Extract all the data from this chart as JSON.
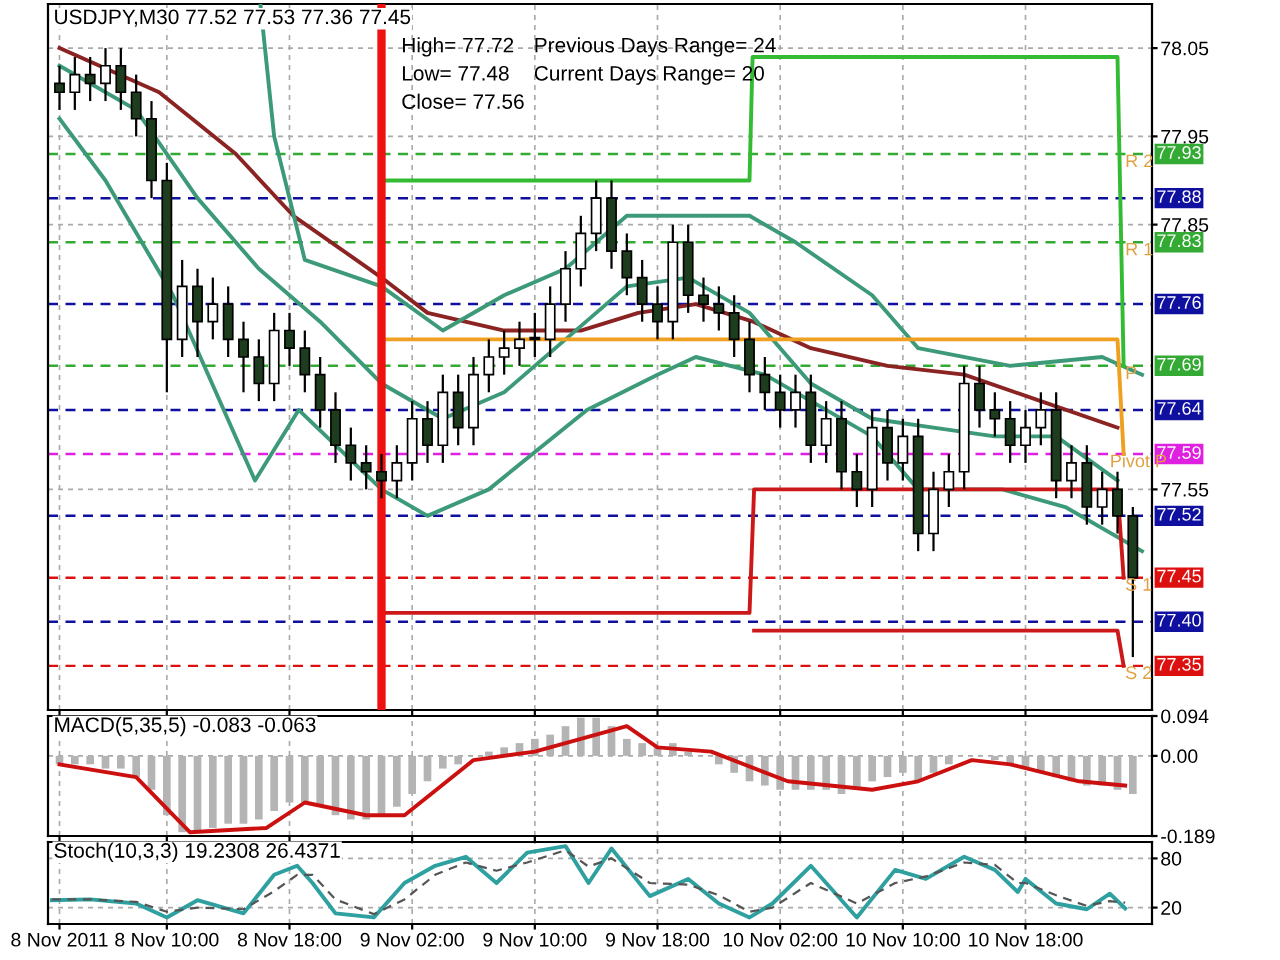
{
  "chart_data": [
    {
      "type": "candlestick",
      "title": "USDJPY,M30 77.52 77.53 77.36 77.45",
      "x": [
        "2011-11-08T03:00",
        "2011-11-08T04:00",
        "2011-11-08T05:00",
        "2011-11-08T06:00",
        "2011-11-08T07:00",
        "2011-11-08T08:00",
        "2011-11-08T09:00",
        "2011-11-08T10:00",
        "2011-11-08T11:00",
        "2011-11-08T12:00",
        "2011-11-08T13:00",
        "2011-11-08T14:00",
        "2011-11-08T15:00",
        "2011-11-08T16:00",
        "2011-11-08T17:00",
        "2011-11-08T18:00",
        "2011-11-08T19:00",
        "2011-11-08T20:00",
        "2011-11-08T21:00",
        "2011-11-08T22:00",
        "2011-11-08T23:00",
        "2011-11-09T00:00",
        "2011-11-09T01:00",
        "2011-11-09T02:00",
        "2011-11-09T03:00",
        "2011-11-09T04:00",
        "2011-11-09T05:00",
        "2011-11-09T06:00",
        "2011-11-09T07:00",
        "2011-11-09T08:00",
        "2011-11-09T09:00",
        "2011-11-09T10:00",
        "2011-11-09T11:00",
        "2011-11-09T12:00",
        "2011-11-09T13:00",
        "2011-11-09T14:00",
        "2011-11-09T15:00",
        "2011-11-09T16:00",
        "2011-11-09T17:00",
        "2011-11-09T18:00",
        "2011-11-09T19:00",
        "2011-11-09T20:00",
        "2011-11-09T21:00",
        "2011-11-09T22:00",
        "2011-11-09T23:00",
        "2011-11-10T00:00",
        "2011-11-10T01:00",
        "2011-11-10T02:00",
        "2011-11-10T03:00",
        "2011-11-10T04:00",
        "2011-11-10T05:00",
        "2011-11-10T06:00",
        "2011-11-10T07:00",
        "2011-11-10T08:00",
        "2011-11-10T09:00",
        "2011-11-10T10:00",
        "2011-11-10T11:00",
        "2011-11-10T12:00",
        "2011-11-10T13:00",
        "2011-11-10T14:00",
        "2011-11-10T15:00",
        "2011-11-10T16:00",
        "2011-11-10T17:00",
        "2011-11-10T18:00",
        "2011-11-10T19:00",
        "2011-11-10T20:00",
        "2011-11-10T21:00",
        "2011-11-10T22:00",
        "2011-11-10T23:00",
        "2011-11-11T00:00",
        "2011-11-11T01:00"
      ],
      "ohlc": [
        [
          78.01,
          78.03,
          77.98,
          78.0
        ],
        [
          78.0,
          78.04,
          77.98,
          78.02
        ],
        [
          78.02,
          78.04,
          77.99,
          78.01
        ],
        [
          78.01,
          78.05,
          77.99,
          78.03
        ],
        [
          78.03,
          78.05,
          77.98,
          78.0
        ],
        [
          78.0,
          78.02,
          77.95,
          77.97
        ],
        [
          77.97,
          77.99,
          77.88,
          77.9
        ],
        [
          77.9,
          77.92,
          77.66,
          77.72
        ],
        [
          77.72,
          77.81,
          77.7,
          77.78
        ],
        [
          77.78,
          77.8,
          77.7,
          77.74
        ],
        [
          77.74,
          77.79,
          77.72,
          77.76
        ],
        [
          77.76,
          77.78,
          77.7,
          77.72
        ],
        [
          77.72,
          77.74,
          77.66,
          77.7
        ],
        [
          77.7,
          77.72,
          77.65,
          77.67
        ],
        [
          77.67,
          77.75,
          77.65,
          77.73
        ],
        [
          77.73,
          77.75,
          77.69,
          77.71
        ],
        [
          77.71,
          77.73,
          77.66,
          77.68
        ],
        [
          77.68,
          77.7,
          77.62,
          77.64
        ],
        [
          77.64,
          77.66,
          77.58,
          77.6
        ],
        [
          77.6,
          77.62,
          77.56,
          77.58
        ],
        [
          77.58,
          77.6,
          77.55,
          77.57
        ],
        [
          77.57,
          77.59,
          77.54,
          77.56
        ],
        [
          77.56,
          77.6,
          77.54,
          77.58
        ],
        [
          77.58,
          77.65,
          77.56,
          77.63
        ],
        [
          77.63,
          77.65,
          77.58,
          77.6
        ],
        [
          77.6,
          77.68,
          77.58,
          77.66
        ],
        [
          77.66,
          77.68,
          77.6,
          77.62
        ],
        [
          77.62,
          77.7,
          77.6,
          77.68
        ],
        [
          77.68,
          77.72,
          77.66,
          77.7
        ],
        [
          77.7,
          77.73,
          77.68,
          77.71
        ],
        [
          77.71,
          77.74,
          77.69,
          77.72
        ],
        [
          77.72,
          77.75,
          77.7,
          77.72
        ],
        [
          77.72,
          77.78,
          77.7,
          77.76
        ],
        [
          77.76,
          77.82,
          77.74,
          77.8
        ],
        [
          77.8,
          77.86,
          77.78,
          77.84
        ],
        [
          77.84,
          77.9,
          77.82,
          77.88
        ],
        [
          77.88,
          77.9,
          77.8,
          77.82
        ],
        [
          77.82,
          77.84,
          77.77,
          77.79
        ],
        [
          77.79,
          77.81,
          77.74,
          77.76
        ],
        [
          77.76,
          77.78,
          77.72,
          77.74
        ],
        [
          77.74,
          77.85,
          77.72,
          77.83
        ],
        [
          77.83,
          77.85,
          77.75,
          77.77
        ],
        [
          77.77,
          77.79,
          77.74,
          77.76
        ],
        [
          77.76,
          77.78,
          77.73,
          77.75
        ],
        [
          77.75,
          77.77,
          77.7,
          77.72
        ],
        [
          77.72,
          77.74,
          77.66,
          77.68
        ],
        [
          77.68,
          77.7,
          77.64,
          77.66
        ],
        [
          77.66,
          77.68,
          77.62,
          77.64
        ],
        [
          77.64,
          77.68,
          77.62,
          77.66
        ],
        [
          77.66,
          77.68,
          77.58,
          77.6
        ],
        [
          77.6,
          77.65,
          77.58,
          77.63
        ],
        [
          77.63,
          77.65,
          77.55,
          77.57
        ],
        [
          77.57,
          77.59,
          77.53,
          77.55
        ],
        [
          77.55,
          77.64,
          77.53,
          77.62
        ],
        [
          77.62,
          77.64,
          77.56,
          77.58
        ],
        [
          77.58,
          77.63,
          77.56,
          77.61
        ],
        [
          77.61,
          77.63,
          77.48,
          77.5
        ],
        [
          77.5,
          77.57,
          77.48,
          77.55
        ],
        [
          77.55,
          77.59,
          77.53,
          77.57
        ],
        [
          77.57,
          77.69,
          77.55,
          77.67
        ],
        [
          77.67,
          77.69,
          77.62,
          77.64
        ],
        [
          77.64,
          77.66,
          77.61,
          77.63
        ],
        [
          77.63,
          77.65,
          77.58,
          77.6
        ],
        [
          77.6,
          77.64,
          77.58,
          77.62
        ],
        [
          77.62,
          77.66,
          77.6,
          77.64
        ],
        [
          77.64,
          77.66,
          77.54,
          77.56
        ],
        [
          77.56,
          77.6,
          77.54,
          77.58
        ],
        [
          77.58,
          77.6,
          77.51,
          77.53
        ],
        [
          77.53,
          77.57,
          77.51,
          77.55
        ],
        [
          77.55,
          77.57,
          77.5,
          77.52
        ],
        [
          77.52,
          77.53,
          77.36,
          77.45
        ]
      ],
      "series": [
        {
          "type": "line",
          "color": "#8b2323",
          "x": [
            "2011-11-08T03:00",
            "2011-11-08T09:30",
            "2011-11-08T14:30",
            "2011-11-08T18:15",
            "2011-11-09T00:00",
            "2011-11-09T03:00",
            "2011-11-09T08:00",
            "2011-11-09T13:00",
            "2011-11-09T16:45",
            "2011-11-09T20:30",
            "2011-11-10T00:15",
            "2011-11-10T04:00",
            "2011-11-10T09:00",
            "2011-11-10T14:00",
            "2011-11-10T19:00",
            "2011-11-11T00:00"
          ],
          "values": [
            78.05,
            78.0,
            77.93,
            77.86,
            77.79,
            77.75,
            77.73,
            77.73,
            77.75,
            77.76,
            77.74,
            77.71,
            77.69,
            77.68,
            77.65,
            77.62
          ]
        },
        {
          "type": "line",
          "color": "#3c9a78",
          "x": [
            "2011-11-08T03:00",
            "2011-11-08T08:00",
            "2011-11-08T12:00",
            "2011-11-08T16:00",
            "2011-11-08T20:00",
            "2011-11-09T00:00",
            "2011-11-09T04:00",
            "2011-11-09T08:00",
            "2011-11-09T12:00",
            "2011-11-09T16:00",
            "2011-11-09T20:00",
            "2011-11-10T00:00",
            "2011-11-10T04:00",
            "2011-11-10T08:00",
            "2011-11-10T12:00",
            "2011-11-10T16:00",
            "2011-11-10T20:00",
            "2011-11-11T00:00"
          ],
          "values": [
            78.03,
            77.98,
            77.88,
            77.8,
            77.74,
            77.67,
            77.63,
            77.66,
            77.72,
            77.78,
            77.79,
            77.75,
            77.67,
            77.63,
            77.62,
            77.61,
            77.61,
            77.56
          ]
        },
        {
          "type": "line",
          "color": "#3c9a78",
          "x": [
            "2011-11-08T16:06",
            "2011-11-08T17:00",
            "2011-11-08T19:00",
            "2011-11-09T00:00",
            "2011-11-09T04:00",
            "2011-11-09T08:00",
            "2011-11-09T12:00",
            "2011-11-09T16:00",
            "2011-11-09T20:00",
            "2011-11-10T00:00",
            "2011-11-10T03:00",
            "2011-11-10T08:00",
            "2011-11-10T11:00",
            "2011-11-10T17:00",
            "2011-11-10T23:00",
            "2011-11-11T01:36"
          ],
          "values": [
            78.1,
            77.95,
            77.81,
            77.78,
            77.73,
            77.77,
            77.8,
            77.86,
            77.86,
            77.86,
            77.83,
            77.77,
            77.71,
            77.69,
            77.7,
            77.68
          ]
        },
        {
          "type": "line",
          "color": "#3c9a78",
          "x": [
            "2011-11-08T03:00",
            "2011-11-08T06:00",
            "2011-11-08T10:24",
            "2011-11-08T15:45",
            "2011-11-08T18:36",
            "2011-11-09T00:00",
            "2011-11-09T03:00",
            "2011-11-09T07:00",
            "2011-11-09T13:24",
            "2011-11-09T18:00",
            "2011-11-09T20:30",
            "2011-11-10T01:00",
            "2011-11-10T08:00",
            "2011-11-10T11:00",
            "2011-11-10T16:30",
            "2011-11-10T20:36",
            "2011-11-11T01:36"
          ],
          "values": [
            77.97,
            77.9,
            77.77,
            77.56,
            77.64,
            77.55,
            77.52,
            77.55,
            77.64,
            77.68,
            77.7,
            77.68,
            77.61,
            77.55,
            77.55,
            77.53,
            77.48
          ]
        },
        {
          "type": "line",
          "color": "#33bb33",
          "x": [
            "2011-11-09T00:00",
            "2011-11-10T00:00",
            "2011-11-10T00:12",
            "2011-11-11T00:00",
            "2011-11-11T00:24"
          ],
          "values": [
            77.9,
            77.9,
            78.04,
            78.04,
            77.69
          ]
        },
        {
          "type": "line",
          "color": "#f0a020",
          "x": [
            "2011-11-09T00:00",
            "2011-11-11T00:00",
            "2011-11-11T00:24"
          ],
          "values": [
            77.72,
            77.72,
            77.59
          ]
        },
        {
          "type": "line",
          "color": "#cc1818",
          "x": [
            "2011-11-09T00:00",
            "2011-11-10T00:00",
            "2011-11-10T00:18",
            "2011-11-11T00:00",
            "2011-11-11T00:24"
          ],
          "values": [
            77.41,
            77.41,
            77.55,
            77.55,
            77.45
          ]
        },
        {
          "type": "line",
          "color": "#cc1818",
          "x": [
            "2011-11-10T00:18",
            "2011-11-11T00:00",
            "2011-11-11T00:24"
          ],
          "values": [
            77.39,
            77.39,
            77.35
          ]
        }
      ],
      "xlim": [
        "2011-11-08T02:15",
        "2011-11-11T02:15"
      ],
      "ylim": [
        77.3,
        78.1
      ],
      "xticks": [
        "2011-11-08T03:00",
        "2011-11-08T10:00",
        "2011-11-08T18:00",
        "2011-11-09T02:00",
        "2011-11-09T10:00",
        "2011-11-09T18:00",
        "2011-11-10T02:00",
        "2011-11-10T10:00",
        "2011-11-10T18:00"
      ],
      "yticks": [
        78.05,
        77.95,
        77.85,
        77.55
      ],
      "tick_labels": "y",
      "grid": true,
      "ref_lines": [
        {
          "axis": "y",
          "value": 77.93,
          "label": "77.93",
          "color": "#33aa33",
          "line_style": "dashed"
        },
        {
          "axis": "y",
          "value": 77.88,
          "label": "77.88",
          "color": "#1010a0",
          "line_style": "dashed"
        },
        {
          "axis": "y",
          "value": 77.83,
          "label": "77.83",
          "color": "#33aa33",
          "line_style": "dashed"
        },
        {
          "axis": "y",
          "value": 77.76,
          "label": "77.76",
          "color": "#1010a0",
          "line_style": "dashed"
        },
        {
          "axis": "y",
          "value": 77.69,
          "label": "77.69",
          "color": "#33aa33",
          "line_style": "dashed"
        },
        {
          "axis": "y",
          "value": 77.64,
          "label": "77.64",
          "color": "#1010a0",
          "line_style": "dashed"
        },
        {
          "axis": "y",
          "value": 77.59,
          "label": "77.59",
          "color": "#e020e0",
          "line_style": "dashed"
        },
        {
          "axis": "y",
          "value": 77.52,
          "label": "77.52",
          "color": "#1010a0",
          "line_style": "dashed"
        },
        {
          "axis": "y",
          "value": 77.45,
          "label": "77.45",
          "color": "#dd1010",
          "line_style": "dashed"
        },
        {
          "axis": "y",
          "value": 77.4,
          "label": "77.40",
          "color": "#1010a0",
          "line_style": "dashed"
        },
        {
          "axis": "y",
          "value": 77.35,
          "label": "77.35",
          "color": "#dd1010",
          "line_style": "dashed"
        },
        {
          "axis": "x",
          "value": "2011-11-09T00:00",
          "color": "#ee1111",
          "line_style": "solid"
        }
      ],
      "annotations": [
        "High= 77.72",
        "Previous Days Range= 24",
        "Low= 77.48",
        "Current Days Range= 20",
        "Close= 77.56",
        {
          "text": "R 2",
          "x": "2011-11-11T00:30",
          "y": 77.93
        },
        {
          "text": "R 1",
          "x": "2011-11-11T00:30",
          "y": 77.83
        },
        {
          "text": "P",
          "x": "2011-11-11T00:30",
          "y": 77.69
        },
        {
          "text": "Pivot P",
          "x": "2011-11-10T23:30",
          "y": 77.59
        },
        {
          "text": "S 1",
          "x": "2011-11-11T00:30",
          "y": 77.45
        },
        {
          "text": "S 2",
          "x": "2011-11-11T00:30",
          "y": 77.35
        }
      ]
    },
    {
      "type": "bar",
      "title": "MACD(5,35,5) -0.083 -0.063",
      "x": [
        "2011-11-08T03:00",
        "2011-11-08T04:00",
        "2011-11-08T05:00",
        "2011-11-08T06:00",
        "2011-11-08T07:00",
        "2011-11-08T08:00",
        "2011-11-08T09:00",
        "2011-11-08T10:00",
        "2011-11-08T11:00",
        "2011-11-08T12:00",
        "2011-11-08T13:00",
        "2011-11-08T14:00",
        "2011-11-08T15:00",
        "2011-11-08T16:00",
        "2011-11-08T17:00",
        "2011-11-08T18:00",
        "2011-11-08T19:00",
        "2011-11-08T20:00",
        "2011-11-08T21:00",
        "2011-11-08T22:00",
        "2011-11-08T23:00",
        "2011-11-09T00:00",
        "2011-11-09T01:00",
        "2011-11-09T02:00",
        "2011-11-09T03:00",
        "2011-11-09T04:00",
        "2011-11-09T05:00",
        "2011-11-09T06:00",
        "2011-11-09T07:00",
        "2011-11-09T08:00",
        "2011-11-09T09:00",
        "2011-11-09T10:00",
        "2011-11-09T11:00",
        "2011-11-09T12:00",
        "2011-11-09T13:00",
        "2011-11-09T14:00",
        "2011-11-09T15:00",
        "2011-11-09T16:00",
        "2011-11-09T17:00",
        "2011-11-09T18:00",
        "2011-11-09T19:00",
        "2011-11-09T20:00",
        "2011-11-09T21:00",
        "2011-11-09T22:00",
        "2011-11-09T23:00",
        "2011-11-10T00:00",
        "2011-11-10T01:00",
        "2011-11-10T02:00",
        "2011-11-10T03:00",
        "2011-11-10T04:00",
        "2011-11-10T05:00",
        "2011-11-10T06:00",
        "2011-11-10T07:00",
        "2011-11-10T08:00",
        "2011-11-10T09:00",
        "2011-11-10T10:00",
        "2011-11-10T11:00",
        "2011-11-10T12:00",
        "2011-11-10T13:00",
        "2011-11-10T14:00",
        "2011-11-10T15:00",
        "2011-11-10T16:00",
        "2011-11-10T17:00",
        "2011-11-10T18:00",
        "2011-11-10T19:00",
        "2011-11-10T20:00",
        "2011-11-10T21:00",
        "2011-11-10T22:00",
        "2011-11-10T23:00",
        "2011-11-11T00:00",
        "2011-11-11T01:00"
      ],
      "series": [
        {
          "type": "bar",
          "color": "#b4b4b4",
          "values": [
            -0.02,
            -0.02,
            -0.02,
            -0.03,
            -0.03,
            -0.05,
            -0.08,
            -0.14,
            -0.18,
            -0.18,
            -0.17,
            -0.16,
            -0.16,
            -0.15,
            -0.13,
            -0.11,
            -0.11,
            -0.12,
            -0.14,
            -0.15,
            -0.15,
            -0.14,
            -0.12,
            -0.09,
            -0.06,
            -0.03,
            -0.02,
            0.0,
            0.01,
            0.02,
            0.03,
            0.04,
            0.05,
            0.07,
            0.09,
            0.09,
            0.07,
            0.04,
            0.03,
            0.02,
            0.03,
            0.01,
            0.0,
            -0.02,
            -0.04,
            -0.06,
            -0.07,
            -0.08,
            -0.08,
            -0.08,
            -0.08,
            -0.09,
            -0.08,
            -0.06,
            -0.05,
            -0.04,
            -0.06,
            -0.04,
            -0.02,
            0.0,
            0.0,
            -0.01,
            -0.02,
            -0.03,
            -0.04,
            -0.05,
            -0.06,
            -0.07,
            -0.07,
            -0.08,
            -0.09
          ]
        },
        {
          "type": "line",
          "color": "#cc1010",
          "x": [
            "2011-11-08T03:00",
            "2011-11-08T08:00",
            "2011-11-08T11:30",
            "2011-11-08T16:30",
            "2011-11-08T19:00",
            "2011-11-08T23:00",
            "2011-11-09T01:30",
            "2011-11-09T06:00",
            "2011-11-09T10:00",
            "2011-11-09T16:00",
            "2011-11-09T18:00",
            "2011-11-09T21:30",
            "2011-11-10T02:30",
            "2011-11-10T08:00",
            "2011-11-10T11:00",
            "2011-11-10T14:30",
            "2011-11-10T17:00",
            "2011-11-10T21:30",
            "2011-11-11T00:30"
          ],
          "values": [
            -0.02,
            -0.05,
            -0.18,
            -0.17,
            -0.11,
            -0.14,
            -0.14,
            -0.01,
            0.01,
            0.07,
            0.02,
            0.01,
            -0.06,
            -0.08,
            -0.06,
            -0.01,
            -0.02,
            -0.06,
            -0.07
          ]
        }
      ],
      "xlim": [
        "2011-11-08T02:15",
        "2011-11-11T02:15"
      ],
      "ylim": [
        -0.189,
        0.094
      ],
      "xticks": [
        "2011-11-08T03:00",
        "2011-11-08T10:00",
        "2011-11-08T18:00",
        "2011-11-09T02:00",
        "2011-11-09T10:00",
        "2011-11-09T18:00",
        "2011-11-10T02:00",
        "2011-11-10T10:00",
        "2011-11-10T18:00"
      ],
      "yticks": [
        0.094,
        {
          "value": 0,
          "label": "0.00"
        },
        -0.189
      ],
      "tick_labels": "y",
      "grid": true
    },
    {
      "type": "line",
      "title": "Stoch(10,3,3) 19.2308 26.4371",
      "x": [
        "2011-11-08T02:30",
        "2011-11-08T05:00",
        "2011-11-08T08:00",
        "2011-11-08T10:00",
        "2011-11-08T12:00",
        "2011-11-08T15:00",
        "2011-11-08T17:00",
        "2011-11-08T18:30",
        "2011-11-08T19:30",
        "2011-11-08T21:00",
        "2011-11-08T23:30",
        "2011-11-09T01:30",
        "2011-11-09T03:30",
        "2011-11-09T05:30",
        "2011-11-09T07:30",
        "2011-11-09T09:30",
        "2011-11-09T12:00",
        "2011-11-09T13:30",
        "2011-11-09T15:00",
        "2011-11-09T17:30",
        "2011-11-09T20:00",
        "2011-11-09T22:00",
        "2011-11-10T00:00",
        "2011-11-10T01:30",
        "2011-11-10T04:00",
        "2011-11-10T07:00",
        "2011-11-10T09:30",
        "2011-11-10T11:30",
        "2011-11-10T14:00",
        "2011-11-10T16:00",
        "2011-11-10T17:30",
        "2011-11-10T18:00",
        "2011-11-10T20:00",
        "2011-11-10T22:00",
        "2011-11-10T23:30",
        "2011-11-11T00:30"
      ],
      "series": [
        {
          "color": "#2fa0a0",
          "values": [
            29,
            30,
            25,
            8,
            29,
            13,
            60,
            71,
            50,
            13,
            8,
            50,
            71,
            82,
            50,
            87,
            95,
            50,
            92,
            34,
            55,
            25,
            8,
            25,
            71,
            8,
            66,
            55,
            82,
            66,
            39,
            55,
            25,
            18,
            37,
            19
          ]
        },
        {
          "color": "#555555",
          "line_style": "dashed",
          "values": [
            30,
            30,
            27,
            15,
            20,
            18,
            40,
            60,
            60,
            30,
            12,
            30,
            60,
            75,
            65,
            75,
            90,
            70,
            80,
            50,
            48,
            35,
            15,
            20,
            50,
            25,
            50,
            58,
            75,
            72,
            50,
            50,
            35,
            22,
            28,
            26
          ]
        }
      ],
      "xlim": [
        "2011-11-08T02:15",
        "2011-11-11T02:15"
      ],
      "ylim": [
        0,
        100
      ],
      "xticks": [
        {
          "value": "2011-11-08T03:00",
          "label": "8 Nov 2011"
        },
        {
          "value": "2011-11-08T10:00",
          "label": "8 Nov 10:00"
        },
        {
          "value": "2011-11-08T18:00",
          "label": "8 Nov 18:00"
        },
        {
          "value": "2011-11-09T02:00",
          "label": "9 Nov 02:00"
        },
        {
          "value": "2011-11-09T10:00",
          "label": "9 Nov 10:00"
        },
        {
          "value": "2011-11-09T18:00",
          "label": "9 Nov 18:00"
        },
        {
          "value": "2011-11-10T02:00",
          "label": "10 Nov 02:00"
        },
        {
          "value": "2011-11-10T10:00",
          "label": "10 Nov 10:00"
        },
        {
          "value": "2011-11-10T18:00",
          "label": "10 Nov 18:00"
        }
      ],
      "yticks": [
        80,
        20
      ],
      "grid": true
    }
  ]
}
